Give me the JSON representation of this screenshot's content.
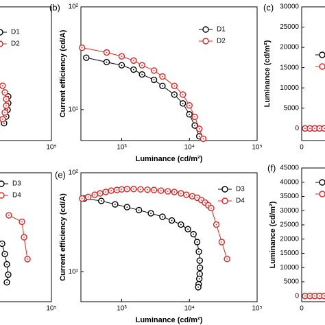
{
  "chart_data": [
    {
      "type": "line",
      "xlog": true,
      "xlim": [
        250,
        100000
      ],
      "ylim": [
        0,
        100
      ],
      "xticks": [
        {
          "value": 100000,
          "label": "10⁵"
        }
      ],
      "legend": "upper left",
      "series": [
        {
          "name": "D1",
          "color": "#000000",
          "x": [
            23000,
            23000,
            22500,
            21500,
            20000
          ],
          "values": [
            33,
            28,
            23,
            18,
            13
          ]
        },
        {
          "name": "D2",
          "color": "#e8201e",
          "x": [
            19000,
            20500,
            21500,
            21500,
            20500,
            19000
          ],
          "values": [
            41,
            36,
            31,
            26,
            21,
            16
          ]
        }
      ]
    },
    {
      "type": "line",
      "panel_label": "(b)",
      "xlabel": "Luminance (cd/m²)",
      "ylabel": "Current efficiency (cd/A)",
      "xlog": true,
      "ylog": true,
      "xlim": [
        250,
        100000
      ],
      "ylim": [
        5,
        100
      ],
      "xticks": [
        {
          "value": 1000,
          "label": "10³"
        },
        {
          "value": 10000,
          "label": "10⁴"
        },
        {
          "value": 100000,
          "label": "10⁵"
        }
      ],
      "yticks": [
        {
          "value": 10,
          "label": "10¹"
        },
        {
          "value": 100,
          "label": "10²"
        }
      ],
      "legend": "upper right",
      "series": [
        {
          "name": "D1",
          "color": "#000000",
          "x": [
            300,
            600,
            1000,
            1500,
            2000,
            3000,
            4000,
            6000,
            8000,
            10000,
            12000,
            14000
          ],
          "values": [
            32,
            29,
            27,
            24.5,
            22,
            19.5,
            17,
            14,
            11.5,
            9,
            7,
            5.5
          ]
        },
        {
          "name": "D2",
          "color": "#e8201e",
          "x": [
            260,
            600,
            1000,
            1500,
            2000,
            3000,
            4000,
            6000,
            8000,
            10000,
            12000,
            14000,
            16000
          ],
          "values": [
            40,
            36,
            33,
            30,
            27,
            24,
            21,
            17,
            14,
            11,
            8.5,
            6.5,
            5.2
          ]
        }
      ]
    },
    {
      "type": "line",
      "panel_label": "(c)",
      "ylabel": "Luminance (cd/m²)",
      "xlim": [
        0,
        8
      ],
      "ylim": [
        -3000,
        30000
      ],
      "xticks": [
        0
      ],
      "yticks": [
        0,
        5000,
        10000,
        15000,
        20000,
        25000,
        30000
      ],
      "legend": "upper right",
      "series": [
        {
          "color": "#000000",
          "x": [
            0.5,
            1.2,
            1.9,
            2.6,
            3.3
          ],
          "values": [
            0,
            0,
            0,
            0,
            0
          ]
        },
        {
          "color": "#e8201e",
          "x": [
            0.5,
            1.2,
            1.9,
            2.6,
            3.3
          ],
          "values": [
            0,
            0,
            0,
            0,
            0
          ]
        }
      ]
    },
    {
      "type": "line",
      "xlog": true,
      "xlim": [
        250,
        100000
      ],
      "ylim": [
        0,
        100
      ],
      "xticks": [
        {
          "value": 100000,
          "label": "10⁵"
        }
      ],
      "legend": "upper left",
      "series": [
        {
          "name": "D3",
          "color": "#000000",
          "x": [
            18700,
            20500,
            22000,
            23000,
            22000
          ],
          "values": [
            45,
            37,
            29,
            21,
            15
          ]
        },
        {
          "name": "D4",
          "color": "#e8201e",
          "x": [
            23500,
            36700,
            39400,
            44300
          ],
          "values": [
            67,
            62,
            50,
            33
          ]
        }
      ]
    },
    {
      "type": "line",
      "panel_label": "(e)",
      "xlabel": "Luminance (cd/m²)",
      "ylabel": "Current efficiency (cd/A)",
      "xlog": true,
      "ylog": true,
      "xlim": [
        250,
        100000
      ],
      "ylim": [
        5,
        100
      ],
      "xticks": [
        {
          "value": 1000,
          "label": "10³"
        },
        {
          "value": 10000,
          "label": "10⁴"
        },
        {
          "value": 100000,
          "label": "10⁵"
        }
      ],
      "yticks": [
        {
          "value": 10,
          "label": "10¹"
        },
        {
          "value": 100,
          "label": "10²"
        }
      ],
      "legend": "upper right",
      "series": [
        {
          "name": "D3",
          "color": "#000000",
          "x": [
            280,
            500,
            800,
            1200,
            1800,
            2700,
            4000,
            5500,
            7500,
            9500,
            11500,
            13000,
            13800,
            14200,
            14300,
            14200,
            14000,
            13700,
            13500
          ],
          "values": [
            55,
            52,
            48,
            45,
            42,
            39,
            36,
            33,
            30,
            27,
            24,
            20,
            16,
            13,
            11,
            9.5,
            8.5,
            7.5,
            7
          ]
        },
        {
          "name": "D4",
          "color": "#e8201e",
          "x": [
            260,
            320,
            400,
            480,
            580,
            700,
            850,
            1000,
            1200,
            1500,
            1900,
            2400,
            3000,
            3800,
            4800,
            6000,
            7500,
            9000,
            11000,
            13000,
            15000,
            17000,
            19000,
            21000,
            25000,
            30000,
            36000
          ],
          "values": [
            55,
            57,
            60,
            62,
            64,
            66,
            67,
            68,
            68.5,
            68.5,
            68,
            67.5,
            67,
            66,
            65,
            64,
            62,
            60,
            58,
            56,
            53,
            50,
            47,
            44,
            30,
            20,
            13.5
          ]
        }
      ]
    },
    {
      "type": "line",
      "panel_label": "(f)",
      "ylabel": "Luminance (cd/m²)",
      "xlim": [
        0,
        8
      ],
      "ylim": [
        -2000,
        45000
      ],
      "xticks": [
        0
      ],
      "yticks": [
        0,
        5000,
        10000,
        15000,
        20000,
        25000,
        30000,
        35000,
        40000,
        45000
      ],
      "legend": "upper right",
      "series": [
        {
          "color": "#000000",
          "x": [
            0.5,
            1.2,
            1.9,
            2.6,
            3.3
          ],
          "values": [
            0,
            0,
            0,
            0,
            0
          ]
        },
        {
          "color": "#e8201e",
          "x": [
            0.5,
            1.2,
            1.9,
            2.6,
            3.3
          ],
          "values": [
            0,
            0,
            0,
            0,
            0
          ]
        }
      ]
    }
  ]
}
